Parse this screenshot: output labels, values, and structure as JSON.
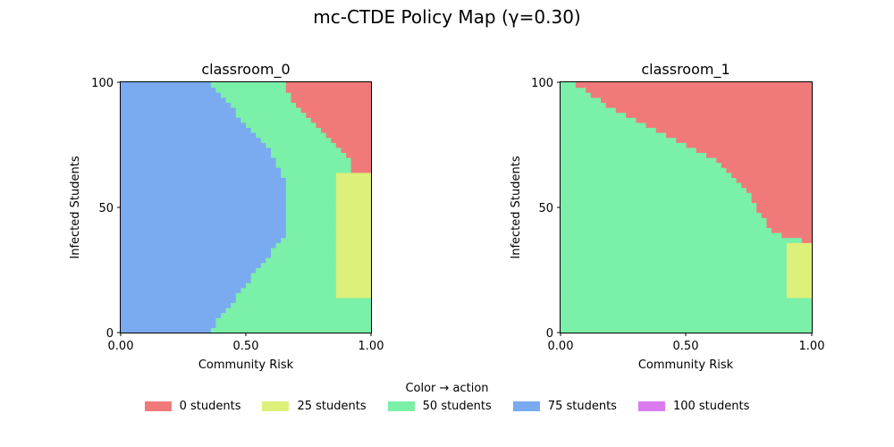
{
  "figure": {
    "title": "mc-CTDE Policy Map (γ=0.30)"
  },
  "legend": {
    "title": "Color → action",
    "items": [
      {
        "label": "0 students",
        "color": "#f07a7a"
      },
      {
        "label": "25 students",
        "color": "#dcf07a"
      },
      {
        "label": "50 students",
        "color": "#7af0a8"
      },
      {
        "label": "75 students",
        "color": "#7aaaf0"
      },
      {
        "label": "100 students",
        "color": "#dc7af0"
      }
    ]
  },
  "chart_data": [
    {
      "type": "heatmap",
      "title": "classroom_0",
      "xlabel": "Community Risk",
      "ylabel": "Infected Students",
      "xlim": [
        0,
        1
      ],
      "ylim": [
        0,
        100
      ],
      "xticks": [
        "0.00",
        "0.50",
        "1.00"
      ],
      "yticks": [
        "0",
        "50",
        "100"
      ],
      "regions": [
        {
          "action": "75 students",
          "color": "#7aaaf0",
          "boundary_to_50": [
            [
              0,
              0.35
            ],
            [
              40,
              0.66
            ],
            [
              60,
              0.66
            ],
            [
              75,
              0.58
            ],
            [
              100,
              0.35
            ]
          ]
        },
        {
          "action": "50 students",
          "color": "#7af0a8",
          "boundary_to_0": [
            [
              63,
              0.93
            ],
            [
              70,
              0.91
            ],
            [
              80,
              0.8
            ],
            [
              90,
              0.7
            ],
            [
              100,
              0.65
            ]
          ]
        },
        {
          "action": "25 students",
          "color": "#dcf07a",
          "region": "x from 0.87 to 1.00, y from 15 to 63"
        },
        {
          "action": "0 students",
          "color": "#f07a7a",
          "region": "upper-right corner, y above 63"
        }
      ]
    },
    {
      "type": "heatmap",
      "title": "classroom_1",
      "xlabel": "Community Risk",
      "ylabel": "Infected Students",
      "xlim": [
        0,
        1
      ],
      "ylim": [
        0,
        100
      ],
      "xticks": [
        "0.00",
        "0.50",
        "1.00"
      ],
      "yticks": [
        "0",
        "50",
        "100"
      ],
      "regions": [
        {
          "action": "50 students",
          "color": "#7af0a8",
          "boundary_to_0": [
            [
              36,
              1.0
            ],
            [
              40,
              0.85
            ],
            [
              50,
              0.78
            ],
            [
              60,
              0.72
            ],
            [
              70,
              0.6
            ],
            [
              80,
              0.4
            ],
            [
              90,
              0.2
            ],
            [
              100,
              0.05
            ]
          ]
        },
        {
          "action": "25 students",
          "color": "#dcf07a",
          "region": "x from 0.90 to 1.00, y from 14 to 36"
        },
        {
          "action": "0 students",
          "color": "#f07a7a",
          "region": "upper-right triangle"
        }
      ]
    }
  ]
}
